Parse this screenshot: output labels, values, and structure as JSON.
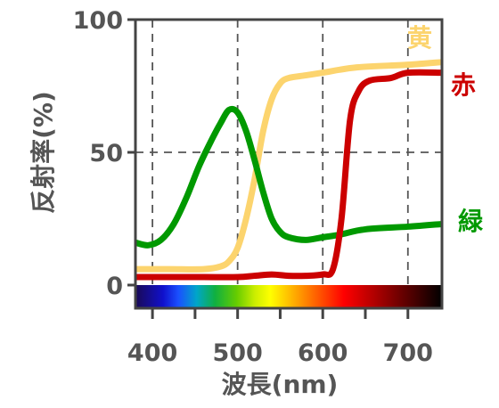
{
  "chart_data": {
    "type": "line",
    "xlabel": "波長(nm)",
    "ylabel": "反射率(%)",
    "xlim": [
      380,
      740
    ],
    "ylim": [
      0,
      100
    ],
    "x_ticks": [
      400,
      500,
      600,
      700
    ],
    "y_ticks": [
      0,
      50,
      100
    ],
    "grid": "dashed",
    "spectrum_bar": true,
    "series": [
      {
        "name": "黄",
        "color": "#FCD46E",
        "points": [
          [
            380,
            6
          ],
          [
            420,
            6
          ],
          [
            460,
            6
          ],
          [
            480,
            7
          ],
          [
            490,
            9
          ],
          [
            500,
            14
          ],
          [
            510,
            25
          ],
          [
            520,
            40
          ],
          [
            530,
            58
          ],
          [
            540,
            70
          ],
          [
            550,
            76
          ],
          [
            560,
            78
          ],
          [
            580,
            79
          ],
          [
            600,
            80
          ],
          [
            640,
            82
          ],
          [
            700,
            83
          ],
          [
            740,
            84
          ]
        ]
      },
      {
        "name": "赤",
        "color": "#CC0000",
        "points": [
          [
            380,
            3
          ],
          [
            420,
            3
          ],
          [
            460,
            3
          ],
          [
            500,
            3
          ],
          [
            520,
            3.5
          ],
          [
            540,
            4
          ],
          [
            560,
            3.5
          ],
          [
            580,
            3.5
          ],
          [
            600,
            4
          ],
          [
            612,
            6
          ],
          [
            622,
            25
          ],
          [
            632,
            62
          ],
          [
            642,
            73
          ],
          [
            655,
            77
          ],
          [
            680,
            78
          ],
          [
            700,
            80
          ],
          [
            740,
            80
          ]
        ]
      },
      {
        "name": "緑",
        "color": "#009900",
        "points": [
          [
            380,
            16
          ],
          [
            395,
            15
          ],
          [
            410,
            17
          ],
          [
            425,
            23
          ],
          [
            440,
            33
          ],
          [
            455,
            45
          ],
          [
            470,
            55
          ],
          [
            480,
            61
          ],
          [
            490,
            66
          ],
          [
            500,
            65
          ],
          [
            510,
            58
          ],
          [
            520,
            47
          ],
          [
            530,
            35
          ],
          [
            540,
            25
          ],
          [
            550,
            20
          ],
          [
            560,
            18
          ],
          [
            580,
            17
          ],
          [
            600,
            18
          ],
          [
            620,
            19
          ],
          [
            650,
            21
          ],
          [
            700,
            22
          ],
          [
            740,
            23
          ]
        ]
      }
    ]
  }
}
